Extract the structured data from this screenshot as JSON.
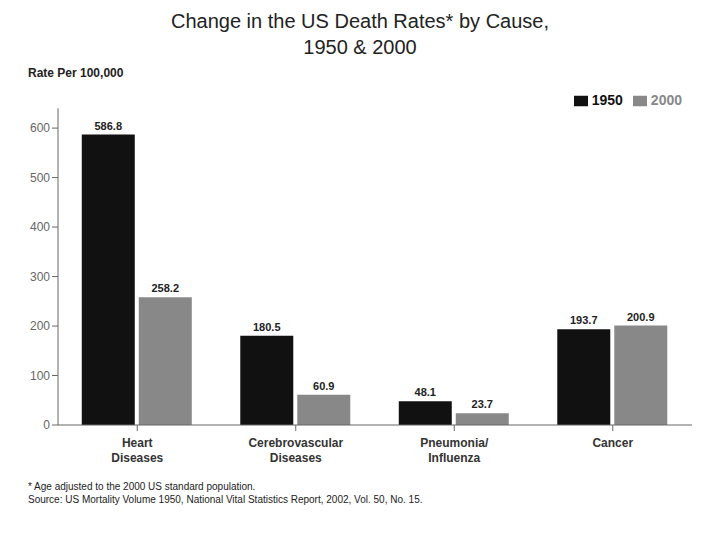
{
  "chart_data": {
    "type": "bar",
    "title": "Change in the US Death Rates* by Cause,\n1950 & 2000",
    "ylabel": "Rate Per 100,000",
    "categories": [
      "Heart\nDiseases",
      "Cerebrovascular\nDiseases",
      "Pneumonia/\nInfluenza",
      "Cancer"
    ],
    "series": [
      {
        "name": "1950",
        "color": "#111111",
        "values": [
          586.8,
          180.5,
          48.1,
          193.7
        ]
      },
      {
        "name": "2000",
        "color": "#888888",
        "values": [
          258.2,
          60.9,
          23.7,
          200.9
        ]
      }
    ],
    "ylim": [
      0,
      640
    ],
    "yticks": [
      0,
      100,
      200,
      300,
      400,
      500,
      600
    ],
    "grid": false,
    "legend": "upper right",
    "data_labels": true,
    "annotations": [
      "* Age adjusted to the 2000 US standard population.",
      "Source: US Mortality Volume 1950, National Vital Statistics Report, 2002, Vol. 50, No. 15."
    ]
  }
}
